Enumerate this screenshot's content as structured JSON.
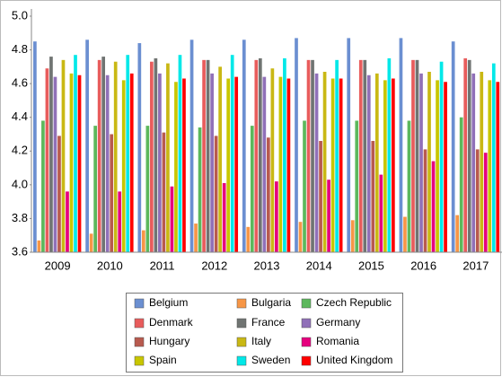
{
  "chart_data": {
    "type": "bar",
    "categories": [
      "2009",
      "2010",
      "2011",
      "2012",
      "2013",
      "2014",
      "2015",
      "2016",
      "2017"
    ],
    "ylim": [
      3.6,
      5.0
    ],
    "yticks": [
      3.6,
      3.8,
      {
        "value": 4,
        "label": "4.0"
      },
      4.2,
      4.4,
      4.6,
      4.8,
      {
        "value": 5,
        "label": "5.0"
      }
    ],
    "grid": false,
    "legend": "bottom",
    "series": [
      {
        "name": "Belgium",
        "color": "#6b8fd1",
        "values": [
          4.85,
          4.86,
          4.84,
          4.86,
          4.86,
          4.87,
          4.87,
          4.87,
          4.85
        ]
      },
      {
        "name": "Bulgaria",
        "color": "#f79646",
        "values": [
          3.67,
          3.71,
          3.73,
          3.77,
          3.75,
          3.78,
          3.79,
          3.81,
          3.82
        ]
      },
      {
        "name": "Czech Republic",
        "color": "#5cb85c",
        "values": [
          4.38,
          4.35,
          4.35,
          4.34,
          4.35,
          4.38,
          4.38,
          4.38,
          4.4
        ]
      },
      {
        "name": "Denmark",
        "color": "#e85c5c",
        "values": [
          4.69,
          4.74,
          4.73,
          4.74,
          4.74,
          4.74,
          4.74,
          4.74,
          4.75
        ]
      },
      {
        "name": "France",
        "color": "#707472",
        "values": [
          4.76,
          4.76,
          4.75,
          4.74,
          4.75,
          4.74,
          4.74,
          4.74,
          4.74
        ]
      },
      {
        "name": "Germany",
        "color": "#9070b8",
        "values": [
          4.64,
          4.65,
          4.66,
          4.66,
          4.64,
          4.66,
          4.65,
          4.66,
          4.66
        ]
      },
      {
        "name": "Hungary",
        "color": "#b85a4e",
        "values": [
          4.29,
          4.3,
          4.31,
          4.29,
          4.28,
          4.26,
          4.26,
          4.21,
          4.21
        ]
      },
      {
        "name": "Italy",
        "color": "#c9b814",
        "values": [
          4.74,
          4.73,
          4.72,
          4.7,
          4.69,
          4.67,
          4.66,
          4.67,
          4.67
        ]
      },
      {
        "name": "Romania",
        "color": "#e6007e",
        "values": [
          3.96,
          3.96,
          3.99,
          4.01,
          4.02,
          4.03,
          4.06,
          4.14,
          4.19
        ]
      },
      {
        "name": "Spain",
        "color": "#c8c600",
        "values": [
          4.66,
          4.62,
          4.61,
          4.63,
          4.64,
          4.63,
          4.62,
          4.62,
          4.62
        ]
      },
      {
        "name": "Sweden",
        "color": "#00e8e8",
        "values": [
          4.77,
          4.77,
          4.77,
          4.77,
          4.75,
          4.74,
          4.75,
          4.73,
          4.72
        ]
      },
      {
        "name": "United Kingdom",
        "color": "#ff0000",
        "values": [
          4.65,
          4.66,
          4.63,
          4.64,
          4.63,
          4.63,
          4.63,
          4.61,
          4.61
        ]
      }
    ]
  }
}
